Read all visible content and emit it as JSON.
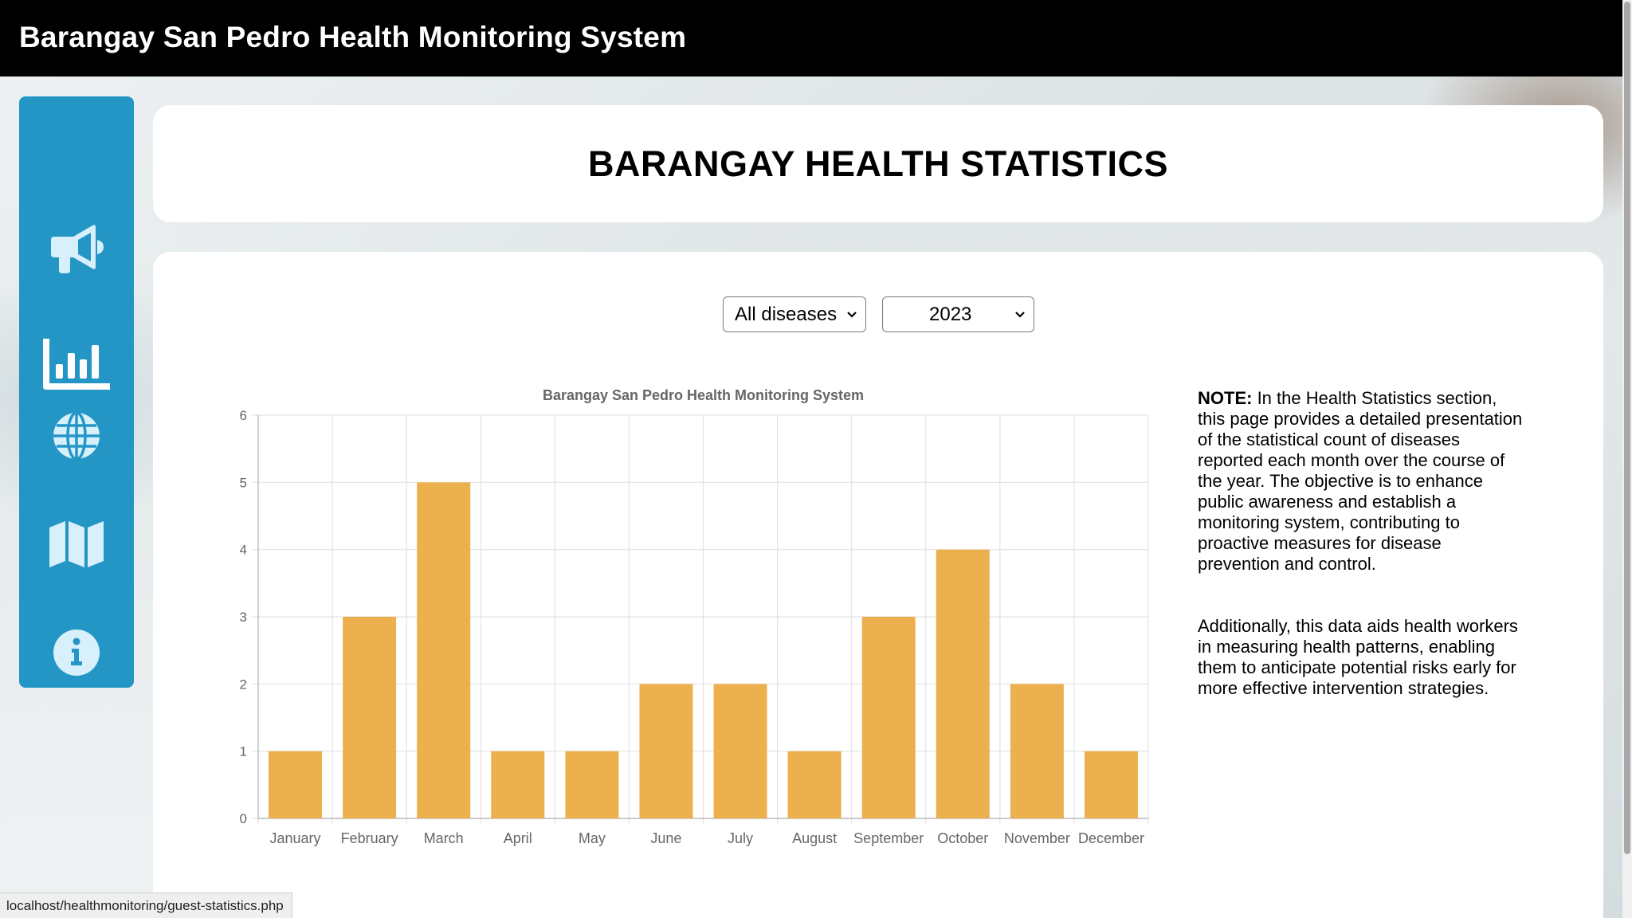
{
  "app": {
    "title": "Barangay San Pedro Health Monitoring System"
  },
  "sidebar": {
    "items": [
      {
        "icon": "megaphone-icon",
        "name": "announcements"
      },
      {
        "icon": "bar-chart-icon",
        "name": "statistics"
      },
      {
        "icon": "globe-icon",
        "name": "world"
      },
      {
        "icon": "map-icon",
        "name": "map"
      },
      {
        "icon": "info-icon",
        "name": "about"
      }
    ],
    "color": "#2496c6"
  },
  "header": {
    "title": "BARANGAY HEALTH STATISTICS"
  },
  "filters": {
    "disease": {
      "selected": "All diseases"
    },
    "year": {
      "selected": "2023"
    }
  },
  "chart_data": {
    "type": "bar",
    "title": "Barangay San Pedro Health Monitoring System",
    "categories": [
      "January",
      "February",
      "March",
      "April",
      "May",
      "June",
      "July",
      "August",
      "September",
      "October",
      "November",
      "December"
    ],
    "values": [
      1,
      3,
      5,
      1,
      1,
      2,
      2,
      1,
      3,
      4,
      2,
      1
    ],
    "ylim": [
      0,
      6
    ],
    "yticks": [
      "0",
      "1",
      "2",
      "3",
      "4",
      "5",
      "6"
    ],
    "xlabel": "",
    "ylabel": "",
    "grid": true,
    "bar_color": "#edb04f"
  },
  "note": {
    "label": "NOTE:",
    "paragraph1": " In the Health Statistics section, this page provides a detailed presentation of the statistical count of diseases reported each month over the course of the year. The objective is to enhance public awareness and establish a monitoring system, contributing to proactive measures for disease prevention and control.",
    "paragraph2": "Additionally, this data aids health workers in measuring health patterns, enabling them to anticipate potential risks early for more effective intervention strategies."
  },
  "status_bar": {
    "url": "localhost/healthmonitoring/guest-statistics.php"
  }
}
